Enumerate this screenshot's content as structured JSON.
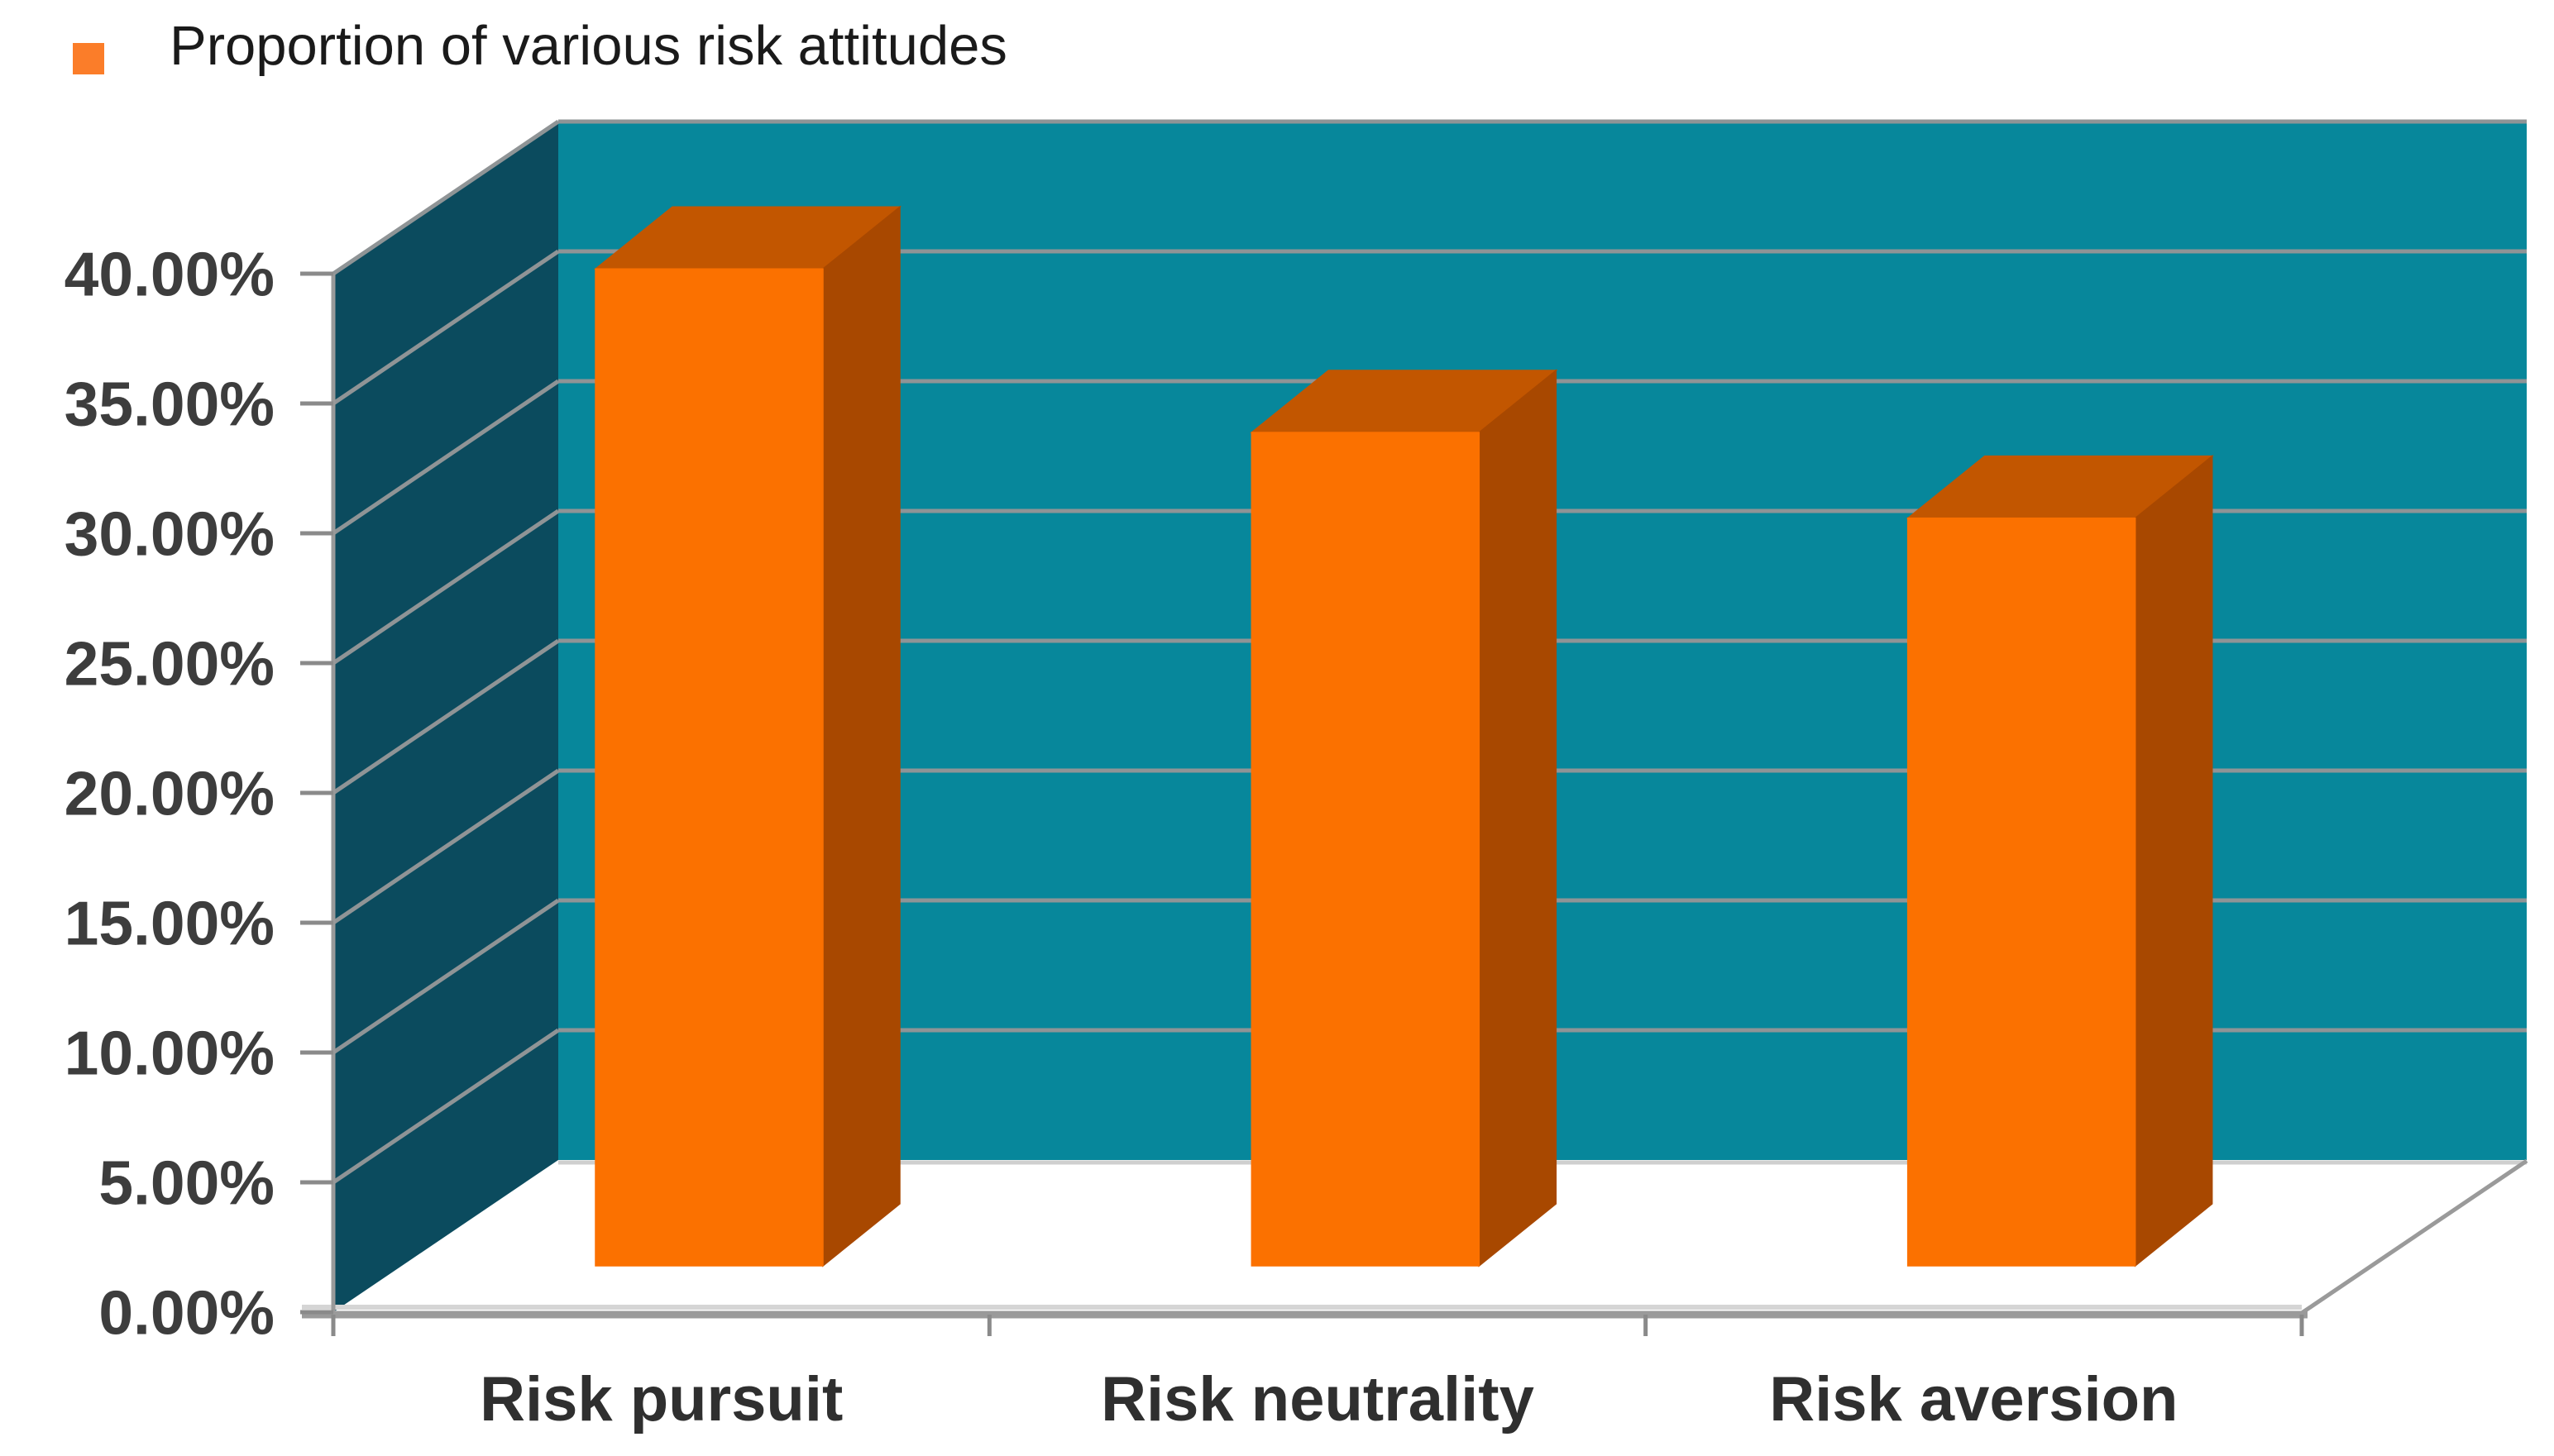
{
  "legend": {
    "label": "Proportion of various risk attitudes",
    "marker_color": "#fb7d29"
  },
  "chart_data": {
    "type": "bar",
    "projection": "3d",
    "title": "",
    "categories": [
      "Risk pursuit",
      "Risk neutrality",
      "Risk aversion"
    ],
    "series": [
      {
        "name": "Proportion of various risk attitudes",
        "values": [
          38.4,
          32.1,
          28.8
        ]
      }
    ],
    "unit": "%",
    "ylim": [
      0,
      40
    ],
    "ytick_step": 5,
    "ytick_labels": [
      "0.00%",
      "5.00%",
      "10.00%",
      "15.00%",
      "20.00%",
      "25.00%",
      "30.00%",
      "35.00%",
      "40.00%"
    ],
    "grid": true,
    "legend_position": "top-left",
    "colors": {
      "bar_front": "#fb7100",
      "bar_top": "#c25600",
      "bar_side": "#a84800",
      "back_wall": "#07879b",
      "side_wall": "#0b4b5e",
      "gridline": "#8f9496",
      "axis": "#9a9a9a",
      "axis_light": "#d5d5d5",
      "wall_bottom_edge": "#cfcfcf",
      "tick": "#8a8a8a",
      "tick_label": "#3d3d3d",
      "category_label": "#2f2f2f",
      "legend_text": "#1a1a1a"
    }
  }
}
